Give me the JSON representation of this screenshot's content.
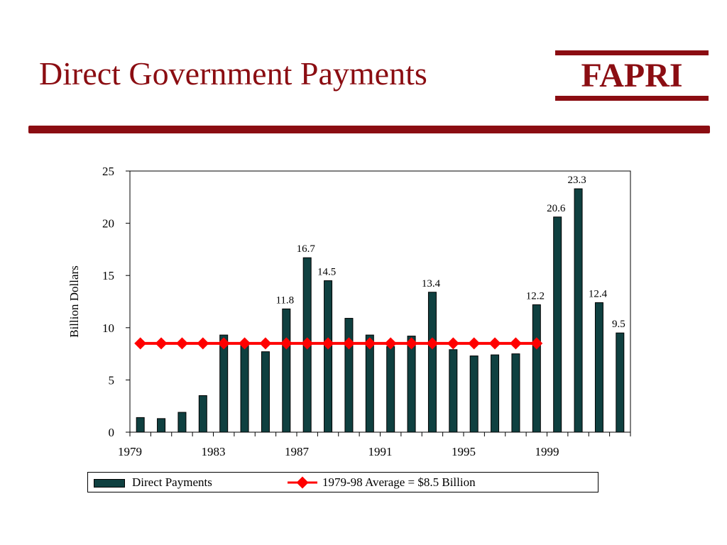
{
  "slide": {
    "title": "Direct Government Payments",
    "logo_text": "FAPRI"
  },
  "colors": {
    "brand": "#8B0D12",
    "bar": "#0F4040",
    "average_line": "#FF0000"
  },
  "chart_data": {
    "type": "bar",
    "title": "",
    "xlabel": "",
    "ylabel": "Billion Dollars",
    "ylim": [
      0,
      25
    ],
    "yticks": [
      0,
      5,
      10,
      15,
      20,
      25
    ],
    "xtick_labels": [
      "1979",
      "1983",
      "1987",
      "1991",
      "1995",
      "1999"
    ],
    "categories": [
      "1979",
      "1980",
      "1981",
      "1982",
      "1983",
      "1984",
      "1985",
      "1986",
      "1987",
      "1988",
      "1989",
      "1990",
      "1991",
      "1992",
      "1993",
      "1994",
      "1995",
      "1996",
      "1997",
      "1998",
      "1999",
      "2000",
      "2001",
      "2002"
    ],
    "series": [
      {
        "name": "Direct Payments",
        "type": "bar",
        "values": [
          1.4,
          1.3,
          1.9,
          3.5,
          9.3,
          8.4,
          7.7,
          11.8,
          16.7,
          14.5,
          10.9,
          9.3,
          8.2,
          9.2,
          13.4,
          7.9,
          7.3,
          7.4,
          7.5,
          12.2,
          20.6,
          23.3,
          12.4,
          9.5
        ]
      },
      {
        "name": "1979-98 Average = $8.5 Billion",
        "type": "line",
        "value": 8.5,
        "categories": [
          "1979",
          "1980",
          "1981",
          "1982",
          "1983",
          "1984",
          "1985",
          "1986",
          "1987",
          "1988",
          "1989",
          "1990",
          "1991",
          "1992",
          "1993",
          "1994",
          "1995",
          "1996",
          "1997",
          "1998"
        ]
      }
    ],
    "data_labels": [
      {
        "category": "1986",
        "text": "11.8"
      },
      {
        "category": "1987",
        "text": "16.7"
      },
      {
        "category": "1988",
        "text": "14.5"
      },
      {
        "category": "1993",
        "text": "13.4"
      },
      {
        "category": "1998",
        "text": "12.2"
      },
      {
        "category": "1999",
        "text": "20.6"
      },
      {
        "category": "2000",
        "text": "23.3"
      },
      {
        "category": "2001",
        "text": "12.4"
      },
      {
        "category": "2002",
        "text": "9.5"
      }
    ],
    "legend": {
      "position": "bottom",
      "bar_label": "Direct Payments",
      "line_label": "1979-98 Average = $8.5 Billion"
    }
  }
}
